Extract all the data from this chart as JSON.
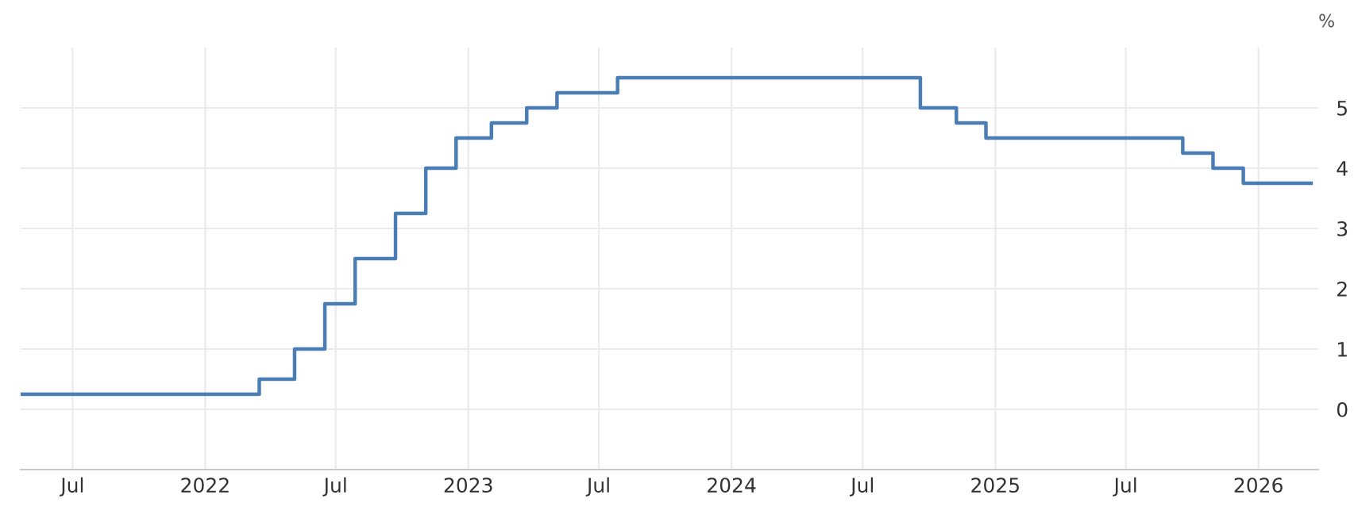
{
  "chart_data": {
    "type": "step",
    "ylabel": "%",
    "x": [
      "2021-04-20",
      "2022-03-17",
      "2022-05-05",
      "2022-06-16",
      "2022-07-28",
      "2022-09-22",
      "2022-11-03",
      "2022-12-15",
      "2023-02-02",
      "2023-03-23",
      "2023-05-04",
      "2023-07-27",
      "2024-09-19",
      "2024-11-08",
      "2024-12-19",
      "2025-09-18",
      "2025-10-30",
      "2025-12-11",
      "2026-03-15"
    ],
    "series": [
      {
        "color": "#4a7db4",
        "values": [
          0.25,
          0.5,
          1.0,
          1.75,
          2.5,
          3.25,
          4.0,
          4.5,
          4.75,
          5.0,
          5.25,
          5.5,
          5.0,
          4.75,
          4.5,
          4.25,
          4.0,
          3.75,
          3.75
        ]
      }
    ],
    "xlim": [
      "2021-04-20",
      "2026-03-25"
    ],
    "xticks": [
      {
        "value": "2021-07-01",
        "label": "Jul"
      },
      {
        "value": "2022-01-01",
        "label": "2022"
      },
      {
        "value": "2022-07-01",
        "label": "Jul"
      },
      {
        "value": "2023-01-01",
        "label": "2023"
      },
      {
        "value": "2023-07-01",
        "label": "Jul"
      },
      {
        "value": "2024-01-01",
        "label": "2024"
      },
      {
        "value": "2024-07-01",
        "label": "Jul"
      },
      {
        "value": "2025-01-01",
        "label": "2025"
      },
      {
        "value": "2025-07-01",
        "label": "Jul"
      },
      {
        "value": "2026-01-01",
        "label": "2026"
      }
    ],
    "ylim": [
      -1,
      6
    ],
    "yticks": [
      0,
      1,
      2,
      3,
      4,
      5
    ],
    "grid": true,
    "line_style": "solid",
    "marker": "none"
  }
}
